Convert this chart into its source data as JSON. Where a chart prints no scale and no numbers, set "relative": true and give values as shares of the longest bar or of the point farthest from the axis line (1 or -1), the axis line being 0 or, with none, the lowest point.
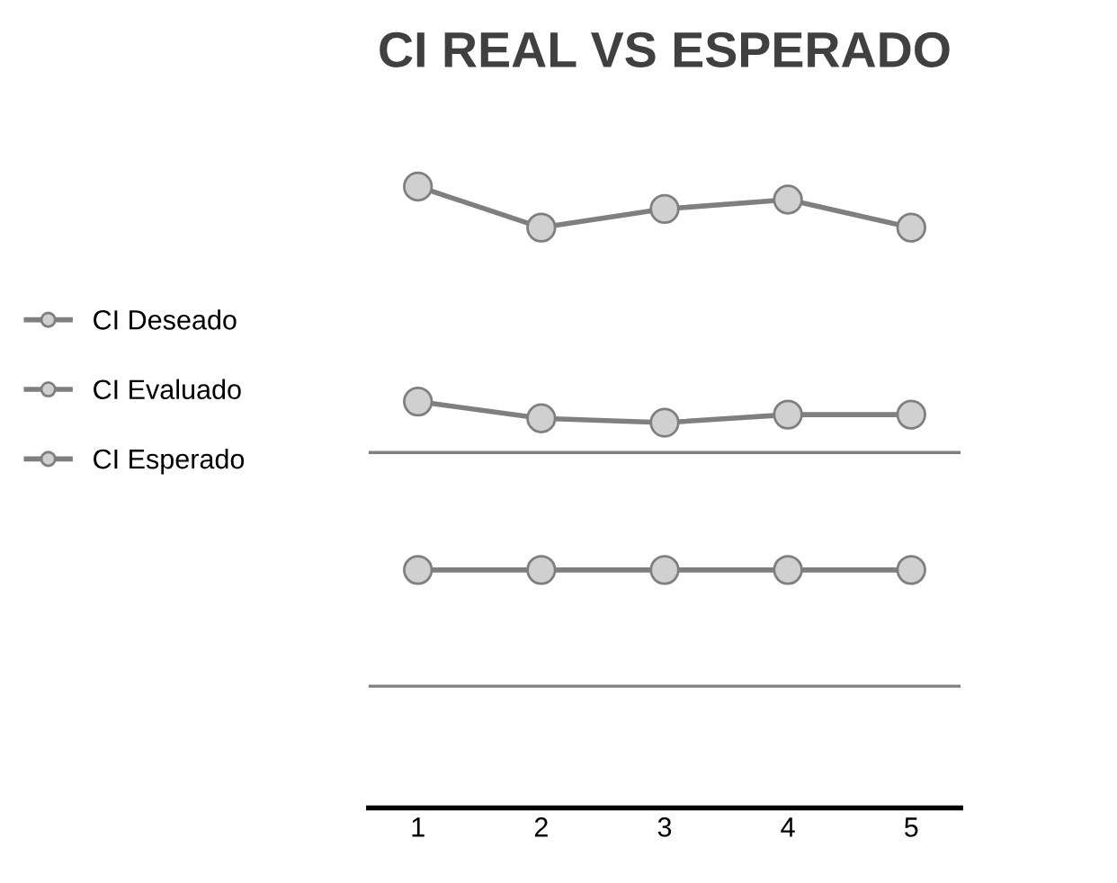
{
  "chart_data": {
    "type": "line",
    "title": "CI REAL VS ESPERADO",
    "relative": true,
    "categories": [
      "1",
      "2",
      "3",
      "4",
      "5"
    ],
    "series": [
      {
        "name": "CI Deseado",
        "color": "#7f7f7f",
        "values": [
          1.0,
          0.934,
          0.964,
          0.979,
          0.934
        ]
      },
      {
        "name": "CI Evaluado",
        "color": "#7f7f7f",
        "values": [
          0.654,
          0.627,
          0.62,
          0.633,
          0.633
        ]
      },
      {
        "name": "CI Esperado",
        "color": "#7f7f7f",
        "values": [
          0.383,
          0.383,
          0.383,
          0.383,
          0.383
        ]
      }
    ],
    "ref_lines": [
      {
        "axis": "y",
        "value": 0.572,
        "color": "#808080"
      },
      {
        "axis": "y",
        "value": 0.196,
        "color": "#808080"
      }
    ],
    "marker": "circle",
    "line_style": "solid",
    "legend": "left",
    "grid": false
  }
}
